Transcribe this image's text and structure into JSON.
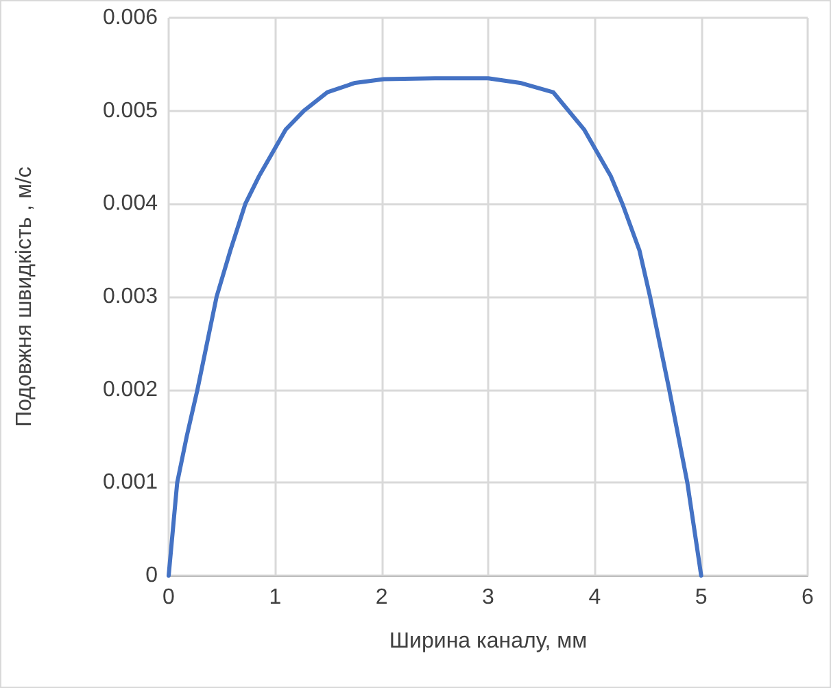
{
  "chart_data": {
    "type": "line",
    "xlabel": "Ширина каналу, мм",
    "ylabel": "Подовжня швидкість , м/с",
    "series": [
      {
        "color": "#4472c4",
        "x": [
          0,
          0.08,
          0.17,
          0.27,
          0.45,
          0.58,
          0.72,
          0.85,
          1,
          1.1,
          1.27,
          1.49,
          1.75,
          2.02,
          2.5,
          3,
          3.3,
          3.61,
          3.9,
          4,
          4.15,
          4.26,
          4.42,
          4.52,
          4.7,
          4.87,
          5
        ],
        "values": [
          0,
          0.001,
          0.0015,
          0.002,
          0.003,
          0.0035,
          0.004,
          0.0043,
          0.0046,
          0.0048,
          0.005,
          0.0052,
          0.0053,
          0.00534,
          0.00535,
          0.00535,
          0.0053,
          0.0052,
          0.0048,
          0.0046,
          0.0043,
          0.004,
          0.0035,
          0.003,
          0.002,
          0.001,
          0
        ]
      }
    ],
    "xlim": [
      0,
      6
    ],
    "xticks": [
      0,
      1,
      2,
      3,
      4,
      5,
      6
    ],
    "ylim": [
      0,
      0.006
    ],
    "yticks": [
      0,
      0.001,
      0.002,
      0.003,
      0.004,
      0.005,
      0.006
    ],
    "grid": true,
    "marker": "none",
    "line_style": "solid"
  }
}
